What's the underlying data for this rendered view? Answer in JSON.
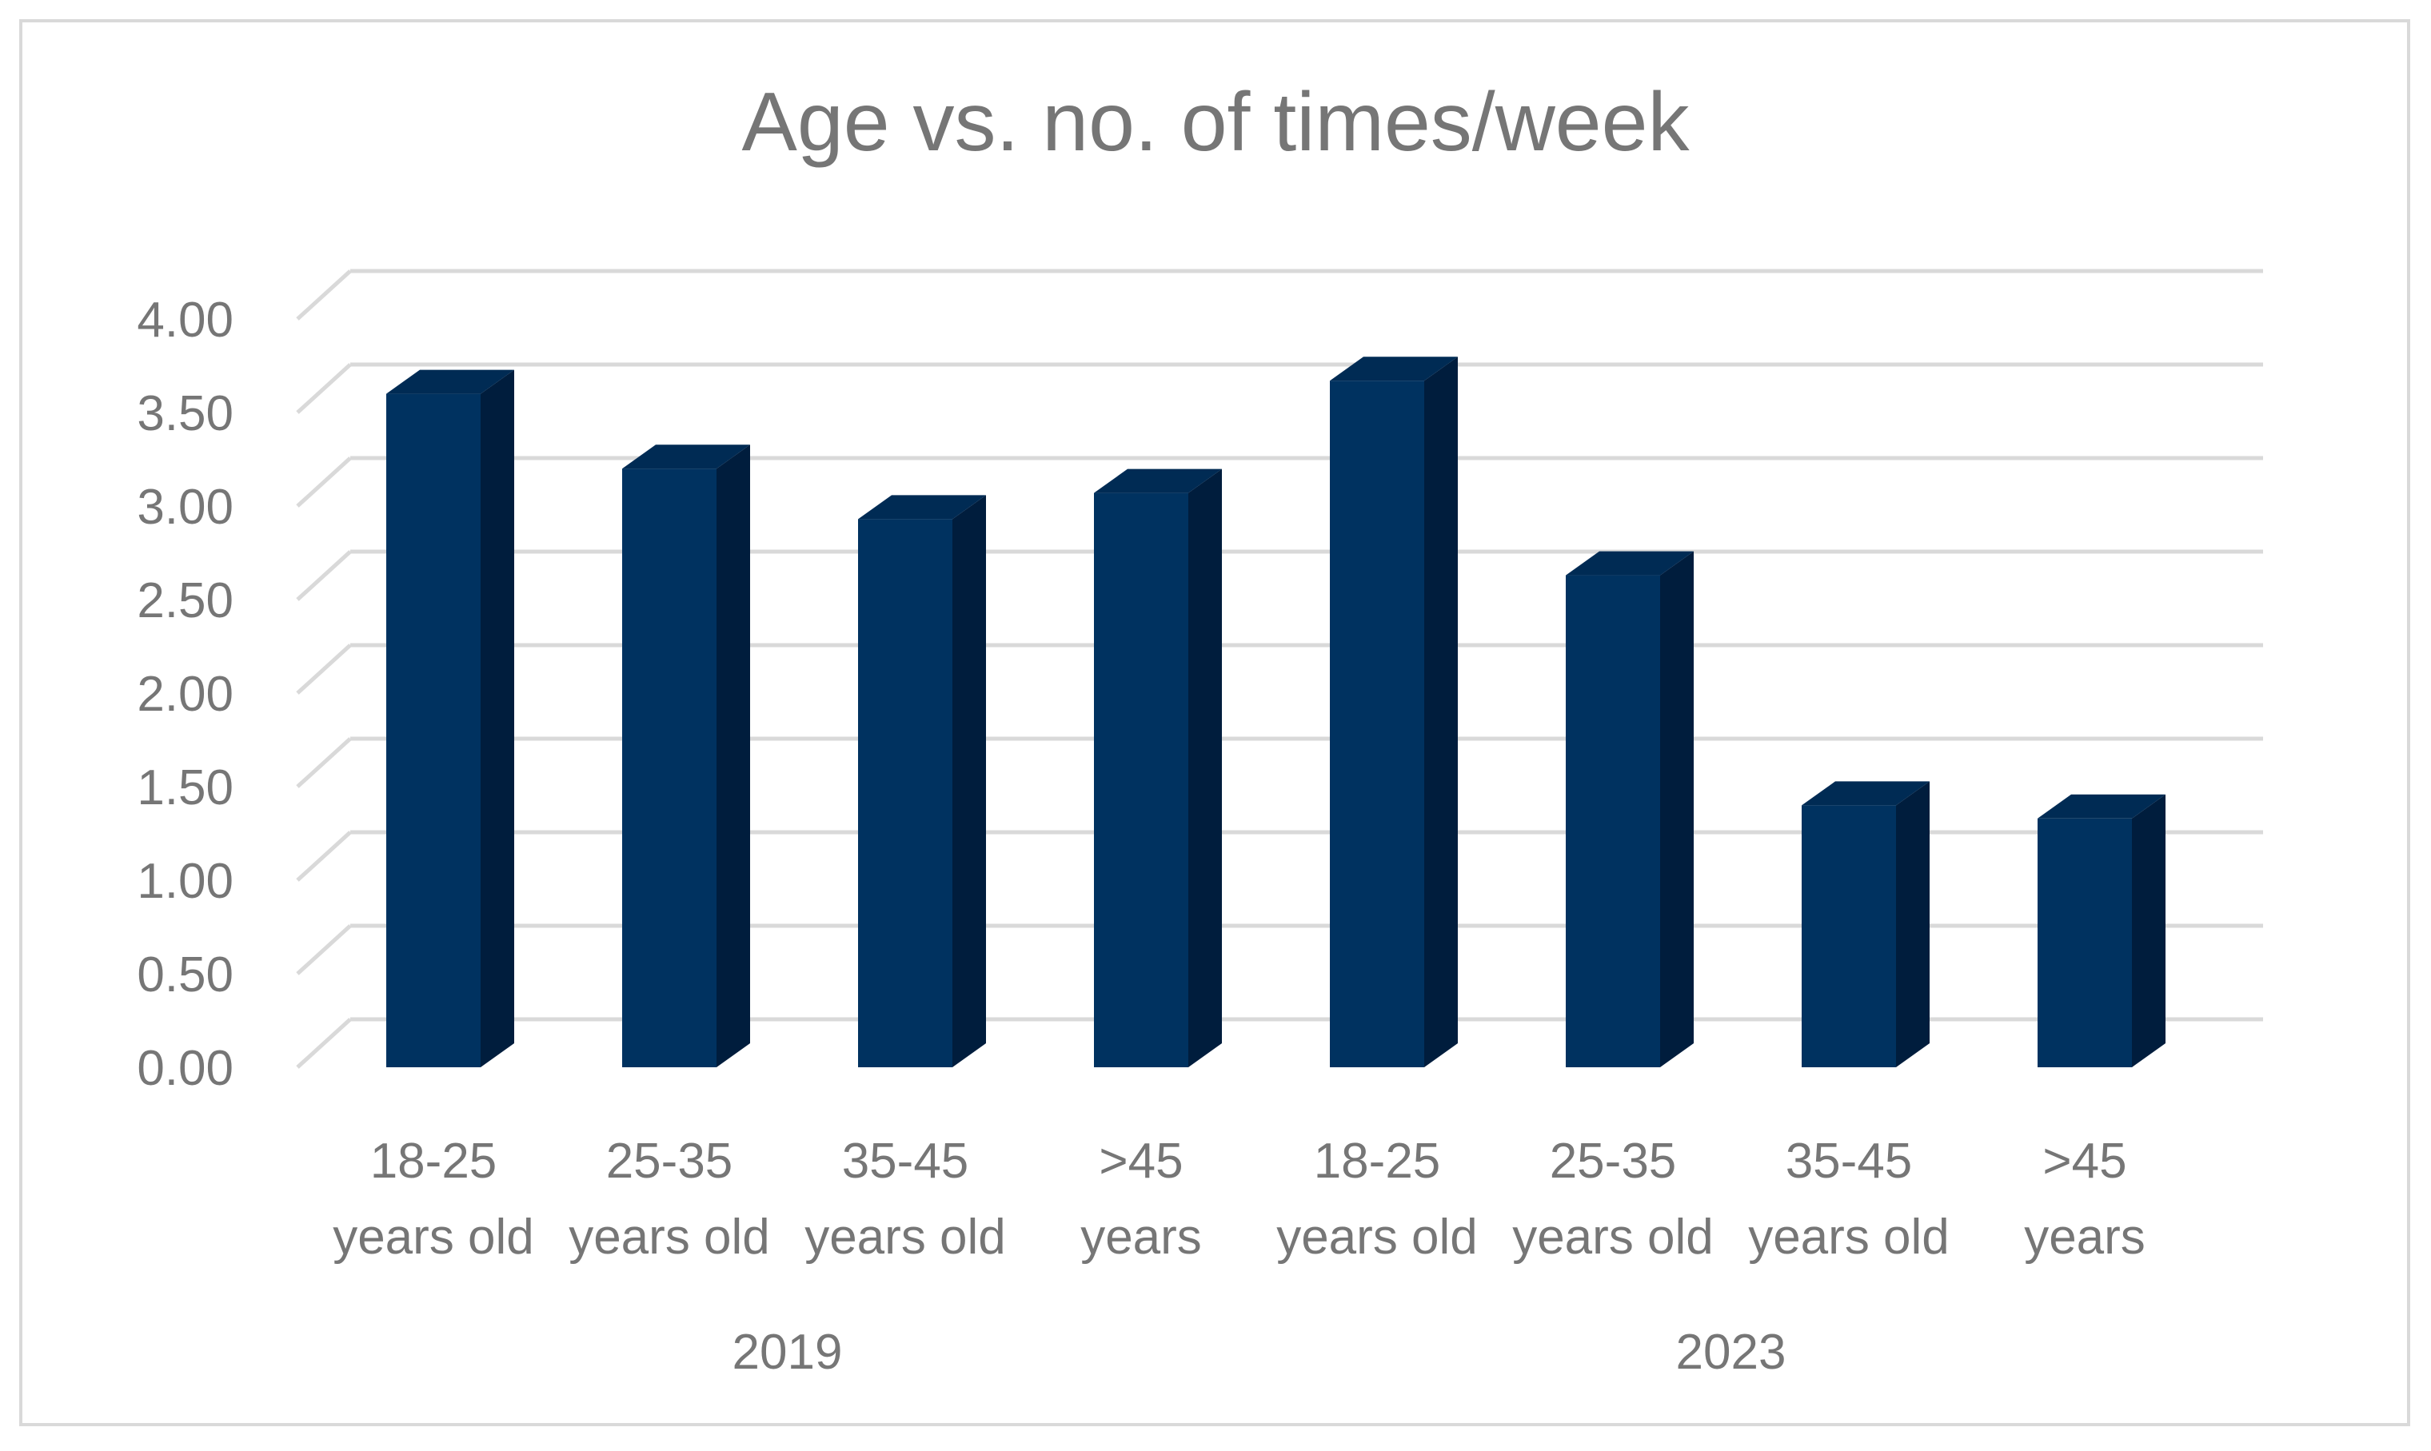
{
  "chart_data": {
    "type": "bar",
    "title": "Age vs. no. of times/week",
    "xlabel": "",
    "ylabel": "",
    "ylim": [
      0,
      4
    ],
    "yticks": [
      "0.00",
      "0.50",
      "1.00",
      "1.50",
      "2.00",
      "2.50",
      "3.00",
      "3.50",
      "4.00"
    ],
    "grid": true,
    "legend": "none",
    "style": "3d-column",
    "groups": [
      {
        "label": "2019",
        "categories": [
          [
            "18-25",
            "years old"
          ],
          [
            "25-35",
            "years old"
          ],
          [
            "35-45",
            "years old"
          ],
          [
            ">45",
            "years"
          ]
        ],
        "values": [
          3.6,
          3.2,
          2.93,
          3.07
        ]
      },
      {
        "label": "2023",
        "categories": [
          [
            "18-25",
            "years old"
          ],
          [
            "25-35",
            "years old"
          ],
          [
            "35-45",
            "years old"
          ],
          [
            ">45",
            "years"
          ]
        ],
        "values": [
          3.67,
          2.63,
          1.4,
          1.33
        ]
      }
    ],
    "colors": {
      "bar_front": "#003260",
      "bar_top": "#002b54",
      "bar_side": "#001d3d",
      "grid": "#d9d9d9",
      "text": "#767676"
    }
  }
}
